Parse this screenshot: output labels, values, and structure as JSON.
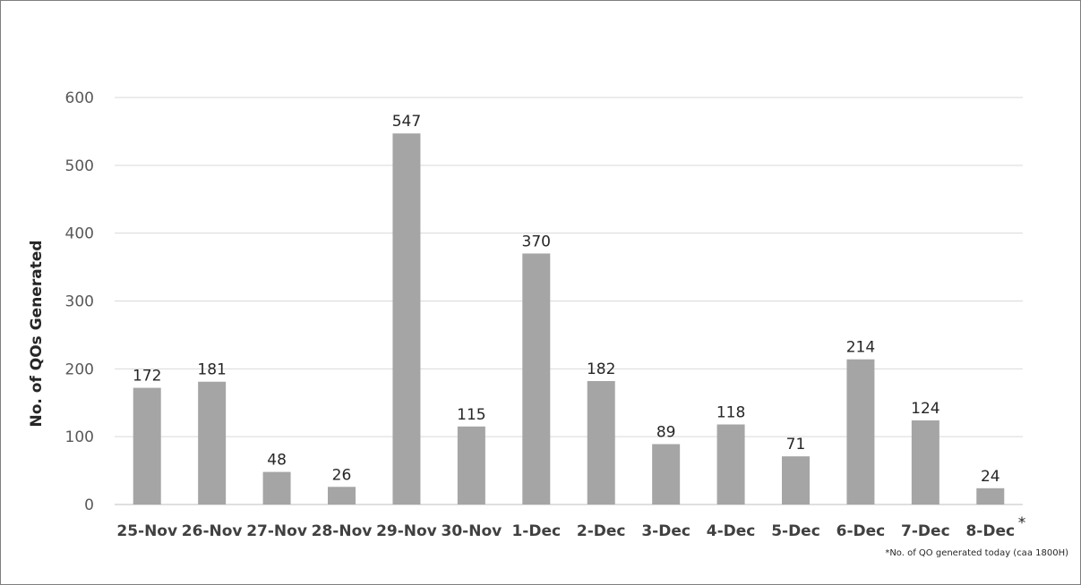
{
  "chart_data": {
    "type": "bar",
    "title": "",
    "xlabel": "",
    "ylabel": "No. of QOs Generated",
    "ylim": [
      0,
      600
    ],
    "yticks": [
      0,
      100,
      200,
      300,
      400,
      500,
      600
    ],
    "grid": true,
    "legend": "none",
    "bar_color": "#a5a5a5",
    "categories": [
      "25-Nov",
      "26-Nov",
      "27-Nov",
      "28-Nov",
      "29-Nov",
      "30-Nov",
      "1-Dec",
      "2-Dec",
      "3-Dec",
      "4-Dec",
      "5-Dec",
      "6-Dec",
      "7-Dec",
      "8-Dec"
    ],
    "values": [
      172,
      181,
      48,
      26,
      547,
      115,
      370,
      182,
      89,
      118,
      71,
      214,
      124,
      24
    ],
    "last_category_marker": "*",
    "footnote": "*No. of QO generated today (caa 1800H)"
  }
}
